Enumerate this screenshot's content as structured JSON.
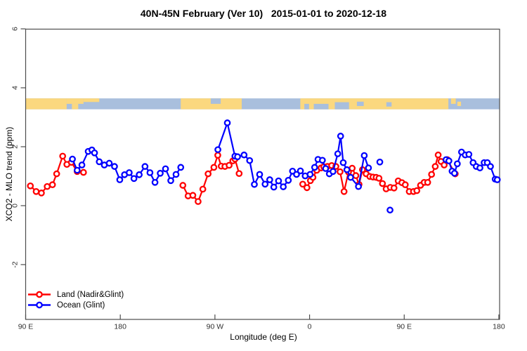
{
  "title": "40N-45N February (Ver 10)   2015-01-01 to 2020-12-18",
  "chart_data": {
    "type": "scatter-line",
    "xlabel": "Longitude (deg E)",
    "ylabel": "XCO2 - MLO trend (ppm)",
    "xlim": [
      -270,
      180.7
    ],
    "ylim": [
      -3.86,
      5.99
    ],
    "grid": "off",
    "legend_position": "bottom-left",
    "x_ticks": [
      {
        "value": -270,
        "label": "90 E"
      },
      {
        "value": -180,
        "label": "180"
      },
      {
        "value": -90,
        "label": "90 W"
      },
      {
        "value": 0,
        "label": "0"
      },
      {
        "value": 90,
        "label": "90 E"
      },
      {
        "value": 180,
        "label": "180"
      }
    ],
    "y_ticks": [
      {
        "value": -2,
        "label": "-2"
      },
      {
        "value": 0,
        "label": "0"
      },
      {
        "value": 2,
        "label": "2"
      },
      {
        "value": 4,
        "label": "4"
      },
      {
        "value": 6,
        "label": "6"
      }
    ],
    "colors": {
      "land_series": "#ff0000",
      "ocean_series": "#0000ff",
      "map_land": "#fbd87f",
      "map_ocean": "#a9bfdd",
      "axis": "#4d4d4d",
      "point_fill": "#ffffff"
    },
    "map_band": {
      "y_range": [
        3.27,
        3.64
      ],
      "land_segments": [
        {
          "from": -270.7,
          "to": -231,
          "part": "full"
        },
        {
          "from": -231,
          "to": -215,
          "part": "top"
        },
        {
          "from": -226,
          "to": -220,
          "part": "bottom"
        },
        {
          "from": -215,
          "to": -200,
          "part": "topthin"
        },
        {
          "from": -122.5,
          "to": -64.5,
          "part": "full"
        },
        {
          "from": -8.8,
          "to": 132,
          "part": "full"
        },
        {
          "from": 134.5,
          "to": 139,
          "part": "top"
        },
        {
          "from": 140.5,
          "to": 144,
          "part": "mid"
        }
      ],
      "ocean_patches": [
        {
          "from": -94,
          "to": -84.5,
          "part": "top"
        },
        {
          "from": -5,
          "to": -0.5,
          "part": "bottom"
        },
        {
          "from": 4,
          "to": 18,
          "part": "bottom"
        },
        {
          "from": 24,
          "to": 37.5,
          "part": "bottomMid"
        },
        {
          "from": 45,
          "to": 51.5,
          "part": "mid"
        },
        {
          "from": 73,
          "to": 78,
          "part": "midSmall"
        }
      ]
    },
    "series": [
      {
        "name": "Land (Nadir&Glint)",
        "color": "#ff0000",
        "chains": [
          [
            [
              -265.5,
              0.67
            ],
            [
              -260,
              0.48
            ],
            [
              -255,
              0.43
            ],
            [
              -249.5,
              0.65
            ],
            [
              -244.5,
              0.71
            ],
            [
              -240.5,
              1.08
            ],
            [
              -234.8,
              1.68
            ],
            [
              -230.8,
              1.4
            ],
            [
              -226.5,
              1.47
            ],
            [
              -221,
              1.16
            ],
            [
              -215,
              1.13
            ]
          ],
          [
            [
              -120.5,
              0.69
            ],
            [
              -115.5,
              0.33
            ],
            [
              -111,
              0.35
            ],
            [
              -106,
              0.14
            ],
            [
              -101.5,
              0.56
            ],
            [
              -96.5,
              1.08
            ],
            [
              -91,
              1.3
            ],
            [
              -87.3,
              1.71
            ],
            [
              -84,
              1.34
            ],
            [
              -80.5,
              1.33
            ],
            [
              -76.5,
              1.37
            ],
            [
              -73,
              1.52
            ],
            [
              -70.9,
              1.58
            ],
            [
              -67,
              1.09
            ]
          ],
          [
            [
              -6.5,
              0.73
            ],
            [
              -2.5,
              0.61
            ],
            [
              0.8,
              0.85
            ],
            [
              3.2,
              0.96
            ],
            [
              6.8,
              1.2
            ],
            [
              11,
              1.28
            ],
            [
              13.5,
              1.32
            ],
            [
              17,
              1.33
            ],
            [
              21,
              1.36
            ],
            [
              25,
              1.33
            ],
            [
              29,
              1.15
            ],
            [
              32.8,
              0.48
            ],
            [
              37,
              1.14
            ],
            [
              40.5,
              1.27
            ],
            [
              44,
              1.02
            ],
            [
              47,
              0.72
            ],
            [
              50.3,
              1.22
            ],
            [
              53.8,
              1.08
            ],
            [
              57.3,
              0.99
            ],
            [
              60.3,
              0.97
            ],
            [
              63.3,
              0.96
            ],
            [
              66,
              0.93
            ],
            [
              69.3,
              0.75
            ],
            [
              72.8,
              0.57
            ],
            [
              76.8,
              0.62
            ],
            [
              80.3,
              0.6
            ],
            [
              84.3,
              0.84
            ],
            [
              87.8,
              0.78
            ],
            [
              91,
              0.71
            ],
            [
              94.8,
              0.48
            ],
            [
              98.8,
              0.48
            ],
            [
              102,
              0.51
            ],
            [
              105.5,
              0.69
            ],
            [
              109,
              0.79
            ],
            [
              112.3,
              0.79
            ],
            [
              116,
              1.06
            ],
            [
              119.5,
              1.33
            ],
            [
              122.3,
              1.72
            ],
            [
              125,
              1.5
            ],
            [
              128,
              1.38
            ],
            [
              131,
              1.56
            ],
            [
              138.5,
              1.08
            ]
          ]
        ],
        "isolated": []
      },
      {
        "name": "Ocean (Glint)",
        "color": "#0000ff",
        "chains": [
          [
            [
              -225.5,
              1.58
            ],
            [
              -221,
              1.2
            ],
            [
              -216.5,
              1.38
            ],
            [
              -210.5,
              1.84
            ],
            [
              -207,
              1.89
            ],
            [
              -204.5,
              1.79
            ],
            [
              -200,
              1.49
            ],
            [
              -195.2,
              1.38
            ],
            [
              -190.5,
              1.44
            ],
            [
              -185.5,
              1.33
            ],
            [
              -180.5,
              0.88
            ],
            [
              -176,
              1.05
            ],
            [
              -171.5,
              1.12
            ],
            [
              -167,
              0.92
            ],
            [
              -162,
              1.05
            ],
            [
              -156.5,
              1.33
            ],
            [
              -151.8,
              1.12
            ],
            [
              -147,
              0.79
            ],
            [
              -142,
              1.1
            ],
            [
              -137,
              1.25
            ],
            [
              -132,
              0.85
            ],
            [
              -127,
              1.06
            ],
            [
              -122.5,
              1.3
            ]
          ],
          [
            [
              -87.2,
              1.9
            ],
            [
              -78.2,
              2.81
            ],
            [
              -71,
              1.68
            ],
            [
              -68.5,
              1.66
            ],
            [
              -62.3,
              1.72
            ],
            [
              -57,
              1.53
            ],
            [
              -52.5,
              0.72
            ],
            [
              -47.5,
              1.06
            ],
            [
              -42.3,
              0.73
            ],
            [
              -37.9,
              0.88
            ],
            [
              -34,
              0.63
            ],
            [
              -29.5,
              0.84
            ],
            [
              -25,
              0.64
            ],
            [
              -20.2,
              0.86
            ],
            [
              -16.2,
              1.17
            ],
            [
              -12.4,
              1.06
            ],
            [
              -8.7,
              1.18
            ],
            [
              -4.2,
              1.01
            ],
            [
              0.5,
              1.06
            ],
            [
              4.8,
              1.3
            ],
            [
              8,
              1.57
            ],
            [
              12.2,
              1.54
            ],
            [
              15.3,
              1.26
            ],
            [
              18.8,
              1.08
            ],
            [
              22.3,
              1.16
            ],
            [
              26.8,
              1.76
            ],
            [
              29.5,
              2.36
            ],
            [
              32,
              1.46
            ],
            [
              35.5,
              1.22
            ],
            [
              39,
              0.96
            ],
            [
              46.5,
              0.65
            ],
            [
              52,
              1.7
            ],
            [
              56,
              1.28
            ]
          ],
          [
            [
              129.8,
              1.56
            ],
            [
              132.5,
              1.52
            ],
            [
              135.5,
              1.17
            ],
            [
              137.8,
              1.1
            ],
            [
              140.5,
              1.42
            ],
            [
              144.5,
              1.82
            ],
            [
              148,
              1.72
            ],
            [
              151.5,
              1.74
            ],
            [
              155.5,
              1.46
            ],
            [
              158.5,
              1.33
            ],
            [
              162,
              1.28
            ],
            [
              166,
              1.46
            ],
            [
              169,
              1.46
            ],
            [
              172,
              1.33
            ],
            [
              176.5,
              0.9
            ],
            [
              178.5,
              0.88
            ]
          ]
        ],
        "isolated": [
          [
            66.8,
            1.48
          ],
          [
            76.5,
            -0.15
          ]
        ]
      }
    ]
  }
}
